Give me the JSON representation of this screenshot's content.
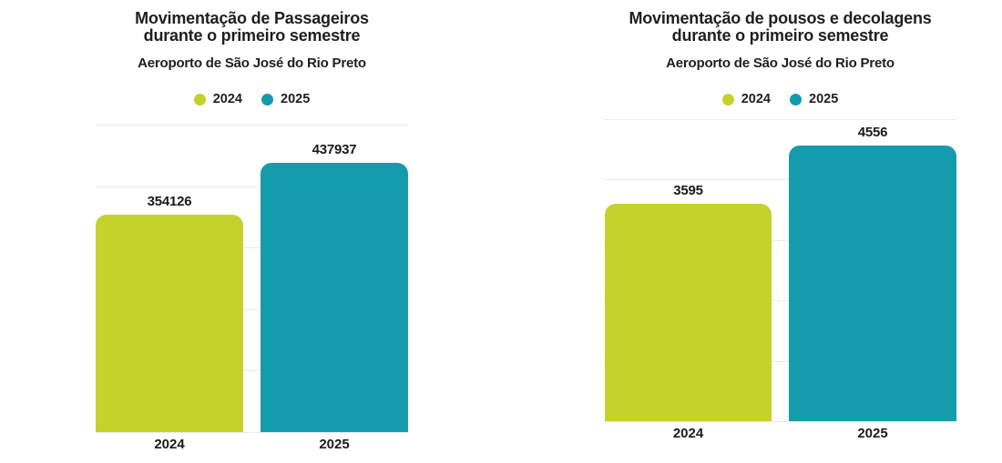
{
  "colors": {
    "background": "#ffffff",
    "bar_2024": "#c3d32b",
    "bar_2025": "#149cad",
    "gridline": "#eaeaec",
    "text": "#1f1f1f"
  },
  "chart_data": [
    {
      "type": "bar",
      "title": "Movimentação de Passageiros durante o primeiro semestre",
      "title_lines": [
        "Movimentação de Passageiros",
        "durante o primeiro semestre"
      ],
      "subtitle": "Aeroporto de São José do Rio Preto",
      "categories": [
        "2024",
        "2025"
      ],
      "values": [
        354126,
        437937
      ],
      "series_colors": [
        "#c3d32b",
        "#149cad"
      ],
      "legend": [
        "2024",
        "2025"
      ],
      "legend_position": "top",
      "xlabel": "",
      "ylabel": "",
      "ylim": [
        0,
        500000
      ],
      "gridline_step": 100000,
      "grid": true,
      "y_axis_labels_shown": false
    },
    {
      "type": "bar",
      "title": "Movimentação de pousos e decolagens durante o primeiro semestre",
      "title_lines": [
        "Movimentação de pousos e decolagens",
        "durante o primeiro semestre"
      ],
      "subtitle": "Aeroporto de São José do Rio Preto",
      "categories": [
        "2024",
        "2025"
      ],
      "values": [
        3595,
        4556
      ],
      "series_colors": [
        "#c3d32b",
        "#149cad"
      ],
      "legend": [
        "2024",
        "2025"
      ],
      "legend_position": "top",
      "xlabel": "",
      "ylabel": "",
      "ylim": [
        0,
        5000
      ],
      "gridline_step": 1000,
      "grid": true,
      "y_axis_labels_shown": false
    }
  ]
}
